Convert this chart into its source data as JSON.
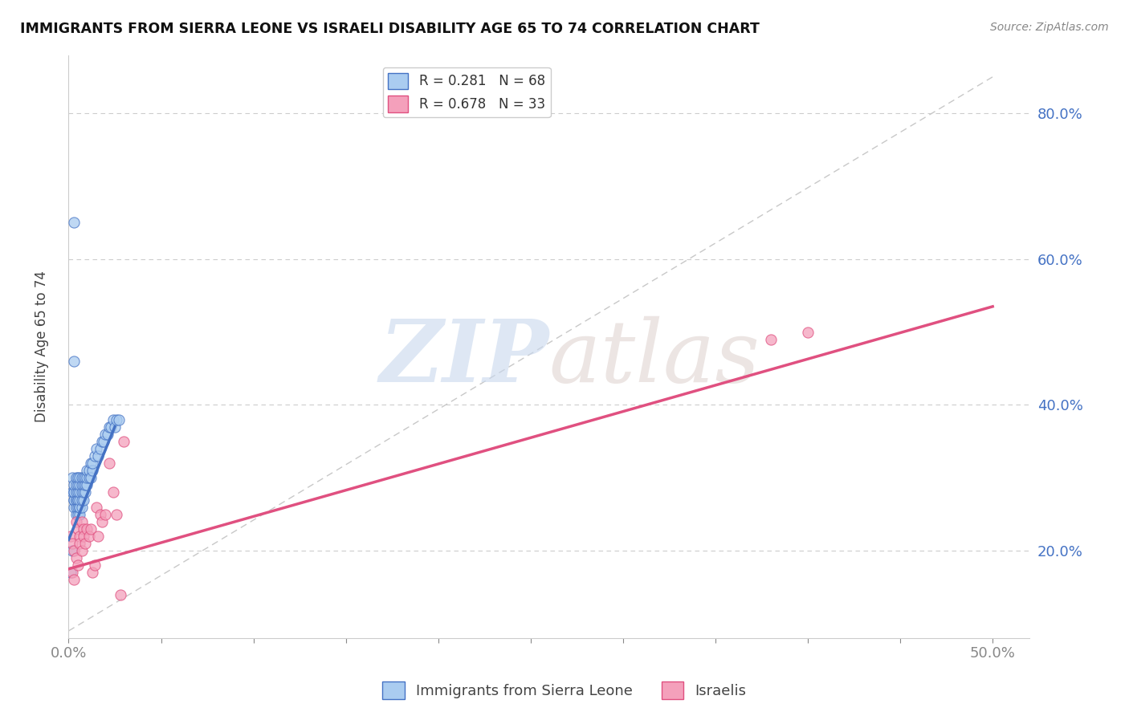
{
  "title": "IMMIGRANTS FROM SIERRA LEONE VS ISRAELI DISABILITY AGE 65 TO 74 CORRELATION CHART",
  "source": "Source: ZipAtlas.com",
  "ylabel": "Disability Age 65 to 74",
  "y_ticks": [
    0.2,
    0.4,
    0.6,
    0.8
  ],
  "y_tick_labels": [
    "20.0%",
    "40.0%",
    "60.0%",
    "80.0%"
  ],
  "x_tick_positions": [
    0.0,
    0.05,
    0.1,
    0.15,
    0.2,
    0.25,
    0.3,
    0.35,
    0.4,
    0.45,
    0.5
  ],
  "xlim": [
    0.0,
    0.52
  ],
  "ylim": [
    0.08,
    0.88
  ],
  "legend1_label": "R = 0.281   N = 68",
  "legend2_label": "R = 0.678   N = 33",
  "legend_color1": "#aaccf0",
  "legend_color2": "#f4a0bb",
  "scatter_color1": "#aaccf0",
  "scatter_color2": "#f4a0bb",
  "line_color1": "#4472c4",
  "line_color2": "#e05080",
  "ref_line_color": "#c8c8c8",
  "blue_points_x": [
    0.002,
    0.002,
    0.003,
    0.003,
    0.003,
    0.003,
    0.003,
    0.003,
    0.004,
    0.004,
    0.004,
    0.004,
    0.004,
    0.004,
    0.004,
    0.005,
    0.005,
    0.005,
    0.005,
    0.005,
    0.005,
    0.005,
    0.006,
    0.006,
    0.006,
    0.006,
    0.006,
    0.006,
    0.006,
    0.007,
    0.007,
    0.007,
    0.007,
    0.007,
    0.008,
    0.008,
    0.008,
    0.008,
    0.009,
    0.009,
    0.009,
    0.01,
    0.01,
    0.01,
    0.011,
    0.011,
    0.012,
    0.012,
    0.013,
    0.013,
    0.014,
    0.015,
    0.016,
    0.017,
    0.018,
    0.019,
    0.02,
    0.021,
    0.022,
    0.023,
    0.024,
    0.025,
    0.026,
    0.027,
    0.003,
    0.003,
    0.002,
    0.001
  ],
  "blue_points_y": [
    0.28,
    0.3,
    0.26,
    0.27,
    0.27,
    0.28,
    0.28,
    0.29,
    0.25,
    0.26,
    0.27,
    0.27,
    0.28,
    0.29,
    0.3,
    0.25,
    0.26,
    0.27,
    0.27,
    0.28,
    0.29,
    0.3,
    0.25,
    0.26,
    0.26,
    0.27,
    0.28,
    0.29,
    0.3,
    0.26,
    0.27,
    0.28,
    0.29,
    0.3,
    0.27,
    0.28,
    0.29,
    0.3,
    0.28,
    0.29,
    0.3,
    0.29,
    0.3,
    0.31,
    0.3,
    0.31,
    0.3,
    0.32,
    0.31,
    0.32,
    0.33,
    0.34,
    0.33,
    0.34,
    0.35,
    0.35,
    0.36,
    0.36,
    0.37,
    0.37,
    0.38,
    0.37,
    0.38,
    0.38,
    0.46,
    0.65,
    0.2,
    0.17
  ],
  "pink_points_x": [
    0.001,
    0.002,
    0.002,
    0.003,
    0.003,
    0.004,
    0.004,
    0.005,
    0.005,
    0.006,
    0.006,
    0.007,
    0.007,
    0.008,
    0.008,
    0.009,
    0.01,
    0.011,
    0.012,
    0.013,
    0.014,
    0.015,
    0.016,
    0.017,
    0.018,
    0.02,
    0.022,
    0.024,
    0.026,
    0.03,
    0.38,
    0.4,
    0.028
  ],
  "pink_points_y": [
    0.22,
    0.21,
    0.17,
    0.2,
    0.16,
    0.19,
    0.24,
    0.18,
    0.23,
    0.22,
    0.21,
    0.2,
    0.24,
    0.23,
    0.22,
    0.21,
    0.23,
    0.22,
    0.23,
    0.17,
    0.18,
    0.26,
    0.22,
    0.25,
    0.24,
    0.25,
    0.32,
    0.28,
    0.25,
    0.35,
    0.49,
    0.5,
    0.14
  ],
  "blue_line_x": [
    0.0,
    0.025
  ],
  "blue_line_y": [
    0.215,
    0.37
  ],
  "pink_line_x": [
    0.0,
    0.5
  ],
  "pink_line_y": [
    0.175,
    0.535
  ],
  "ref_line_x": [
    0.0,
    0.5
  ],
  "ref_line_y": [
    0.09,
    0.85
  ]
}
